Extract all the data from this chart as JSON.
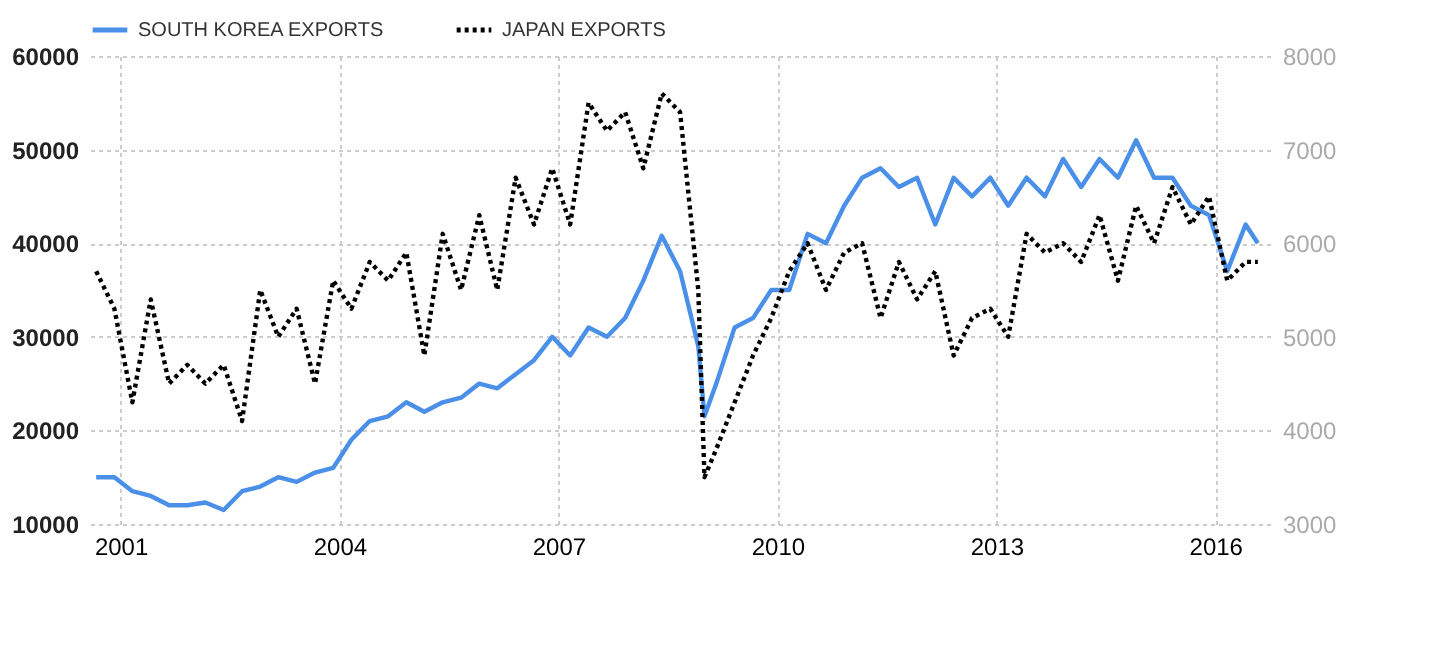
{
  "chart_data": {
    "type": "line",
    "x": [
      "2000-09",
      "2000-12",
      "2001-03",
      "2001-06",
      "2001-09",
      "2001-12",
      "2002-03",
      "2002-06",
      "2002-09",
      "2002-12",
      "2003-03",
      "2003-06",
      "2003-09",
      "2003-12",
      "2004-03",
      "2004-06",
      "2004-09",
      "2004-12",
      "2005-03",
      "2005-06",
      "2005-09",
      "2005-12",
      "2006-03",
      "2006-06",
      "2006-09",
      "2006-12",
      "2007-03",
      "2007-06",
      "2007-09",
      "2007-12",
      "2008-03",
      "2008-06",
      "2008-09",
      "2008-12",
      "2009-01",
      "2009-03",
      "2009-06",
      "2009-09",
      "2009-12",
      "2010-03",
      "2010-06",
      "2010-09",
      "2010-12",
      "2011-03",
      "2011-06",
      "2011-09",
      "2011-12",
      "2012-03",
      "2012-06",
      "2012-09",
      "2012-12",
      "2013-03",
      "2013-06",
      "2013-09",
      "2013-12",
      "2014-03",
      "2014-06",
      "2014-09",
      "2014-12",
      "2015-03",
      "2015-06",
      "2015-09",
      "2015-12",
      "2016-03",
      "2016-06",
      "2016-08"
    ],
    "series": [
      {
        "name": "SOUTH KOREA EXPORTS",
        "color": "#4a90e8",
        "line_style": "solid",
        "axis": "y",
        "values": [
          15000,
          15000,
          13500,
          13000,
          12000,
          12000,
          12300,
          11500,
          13500,
          14000,
          15000,
          14500,
          15500,
          16000,
          19000,
          21000,
          21500,
          23000,
          22000,
          23000,
          23500,
          25000,
          24500,
          26000,
          27500,
          30000,
          28000,
          31000,
          30000,
          32000,
          36000,
          40800,
          37000,
          29000,
          21500,
          25000,
          31000,
          32000,
          35000,
          35000,
          41000,
          40000,
          44000,
          47000,
          48000,
          46000,
          47000,
          42000,
          47000,
          45000,
          47000,
          44000,
          47000,
          45000,
          49000,
          46000,
          49000,
          47000,
          51000,
          47000,
          47000,
          44000,
          43000,
          37000,
          42000,
          40000
        ]
      },
      {
        "name": "JAPAN EXPORTS",
        "color": "#000000",
        "line_style": "dotted",
        "axis": "y2",
        "values": [
          5700,
          5300,
          4300,
          5400,
          4500,
          4700,
          4500,
          4700,
          4100,
          5500,
          5000,
          5300,
          4500,
          5600,
          5300,
          5800,
          5600,
          5900,
          4800,
          6100,
          5500,
          6300,
          5500,
          6700,
          6200,
          6800,
          6200,
          7500,
          7200,
          7400,
          6800,
          7600,
          7400,
          5500,
          3500,
          3800,
          4300,
          4800,
          5200,
          5700,
          6000,
          5500,
          5900,
          6000,
          5200,
          5800,
          5400,
          5700,
          4800,
          5200,
          5300,
          5000,
          6100,
          5900,
          6000,
          5800,
          6300,
          5600,
          6400,
          6000,
          6600,
          6200,
          6500,
          5600,
          5800,
          5800
        ]
      }
    ],
    "xlim": [
      "2000-08",
      "2016-10"
    ],
    "xticks": [
      {
        "value": "2001-01",
        "label": "2001"
      },
      {
        "value": "2004-01",
        "label": "2004"
      },
      {
        "value": "2007-01",
        "label": "2007"
      },
      {
        "value": "2010-01",
        "label": "2010"
      },
      {
        "value": "2013-01",
        "label": "2013"
      },
      {
        "value": "2016-01",
        "label": "2016"
      }
    ],
    "ylim": [
      10000,
      60000
    ],
    "yticks": [
      10000,
      20000,
      30000,
      40000,
      50000,
      60000
    ],
    "y2lim": [
      3000,
      8000
    ],
    "y2ticks": [
      3000,
      4000,
      5000,
      6000,
      7000,
      8000
    ],
    "grid": true,
    "legend": "top left"
  }
}
